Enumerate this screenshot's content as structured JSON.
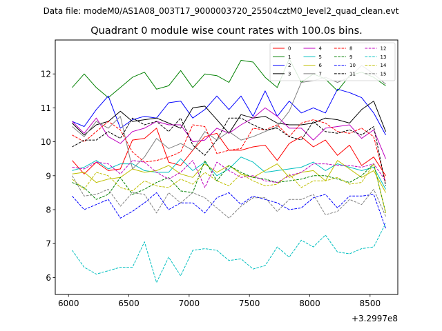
{
  "figure": {
    "suptitle": "Data file: modeM0/AS1A08_003T17_9000003720_25504cztM0_level2_quad_clean.evt",
    "title": "Quadrant 0 module wise count rates with 100.0s bins.",
    "offset_label": "+3.2997e8"
  },
  "chart_data": {
    "type": "line",
    "title": "Quadrant 0 module wise count rates with 100.0s bins.",
    "xlabel": "",
    "ylabel": "",
    "x_offset_text": "+3.2997e8",
    "xlim": [
      5890,
      8730
    ],
    "ylim": [
      5.5,
      13.0
    ],
    "xticks": [
      6000,
      6500,
      7000,
      7500,
      8000,
      8500
    ],
    "yticks": [
      6,
      7,
      8,
      9,
      10,
      11,
      12
    ],
    "grid": false,
    "legend": {
      "placement": "top-right",
      "columns": 4
    },
    "x": [
      6030,
      6130,
      6230,
      6330,
      6430,
      6530,
      6630,
      6730,
      6830,
      6930,
      7030,
      7130,
      7230,
      7330,
      7430,
      7530,
      7630,
      7730,
      7830,
      7930,
      8030,
      8130,
      8230,
      8330,
      8430,
      8530,
      8630
    ],
    "series": [
      {
        "name": "0",
        "color": "#ff0000",
        "dash": "solid",
        "values": [
          9.45,
          9.05,
          9.4,
          9.15,
          9.2,
          10.05,
          10.1,
          10.4,
          9.4,
          9.3,
          9.75,
          10.15,
          10.25,
          9.75,
          9.75,
          9.85,
          9.9,
          9.45,
          9.95,
          10.15,
          9.85,
          10.05,
          9.6,
          9.9,
          9.3,
          9.55,
          9.0
        ]
      },
      {
        "name": "1",
        "color": "#008000",
        "dash": "solid",
        "values": [
          11.6,
          12.0,
          11.6,
          11.3,
          11.6,
          11.9,
          12.05,
          11.55,
          11.65,
          12.1,
          11.6,
          12.0,
          11.95,
          11.75,
          12.4,
          12.35,
          11.9,
          11.6,
          12.45,
          11.75,
          12.0,
          11.85,
          11.5,
          11.95,
          12.05,
          11.9,
          11.65
        ]
      },
      {
        "name": "2",
        "color": "#0000ff",
        "dash": "solid",
        "values": [
          10.6,
          10.45,
          10.95,
          11.35,
          10.4,
          10.65,
          10.75,
          10.7,
          11.15,
          11.2,
          10.7,
          10.95,
          11.35,
          10.95,
          11.35,
          10.75,
          11.5,
          10.75,
          11.2,
          10.85,
          11.0,
          10.85,
          11.55,
          11.45,
          11.3,
          10.85,
          10.2
        ]
      },
      {
        "name": "3",
        "color": "#000000",
        "dash": "solid",
        "values": [
          10.55,
          10.2,
          10.5,
          10.6,
          10.9,
          10.6,
          10.65,
          10.7,
          10.55,
          10.4,
          11.0,
          11.05,
          10.65,
          10.25,
          10.8,
          10.7,
          10.75,
          10.55,
          10.5,
          10.5,
          10.55,
          10.7,
          10.65,
          10.55,
          10.95,
          11.2,
          10.3
        ]
      },
      {
        "name": "4",
        "color": "#bf00bf",
        "dash": "solid",
        "values": [
          10.6,
          10.25,
          10.7,
          10.15,
          9.95,
          10.3,
          10.4,
          10.6,
          10.5,
          10.5,
          10.0,
          10.05,
          10.4,
          10.25,
          10.5,
          10.7,
          11.0,
          10.75,
          10.4,
          10.4,
          10.05,
          10.4,
          10.45,
          10.5,
          10.1,
          10.35,
          9.5
        ]
      },
      {
        "name": "5",
        "color": "#00bfbf",
        "dash": "solid",
        "values": [
          9.15,
          9.25,
          9.45,
          9.2,
          9.35,
          9.35,
          9.15,
          9.1,
          9.1,
          9.5,
          9.15,
          9.4,
          9.0,
          9.2,
          9.55,
          9.4,
          9.1,
          9.15,
          9.2,
          9.25,
          9.4,
          9.15,
          9.35,
          9.25,
          9.15,
          9.25,
          8.6
        ]
      },
      {
        "name": "6",
        "color": "#bfbf00",
        "dash": "solid",
        "values": [
          9.05,
          9.1,
          8.8,
          8.9,
          8.95,
          9.2,
          9.1,
          9.15,
          9.3,
          9.05,
          8.95,
          9.35,
          9.1,
          9.3,
          9.05,
          8.95,
          9.15,
          9.35,
          8.95,
          9.1,
          9.15,
          8.85,
          9.45,
          9.2,
          8.95,
          9.15,
          8.5
        ]
      },
      {
        "name": "7",
        "color": "#808080",
        "dash": "solid",
        "values": [
          10.45,
          10.15,
          10.6,
          10.4,
          10.75,
          9.2,
          9.55,
          10.1,
          9.8,
          9.95,
          9.75,
          10.3,
          10.05,
          10.3,
          10.05,
          10.15,
          10.3,
          10.45,
          10.9,
          11.75,
          11.8,
          11.9,
          11.75,
          11.9,
          12.25,
          12.0,
          11.7
        ]
      },
      {
        "name": "8",
        "color": "#ff0000",
        "dash": "dashed",
        "values": [
          10.2,
          10.0,
          10.3,
          10.6,
          10.35,
          9.7,
          9.4,
          9.45,
          9.55,
          9.7,
          10.5,
          10.45,
          9.65,
          9.75,
          9.8,
          10.4,
          10.35,
          10.5,
          10.15,
          10.55,
          10.65,
          10.55,
          10.3,
          10.25,
          10.4,
          10.15,
          8.8
        ]
      },
      {
        "name": "9",
        "color": "#008000",
        "dash": "dashed",
        "values": [
          8.8,
          8.65,
          8.3,
          8.45,
          8.95,
          8.45,
          8.6,
          8.8,
          8.95,
          8.55,
          8.5,
          9.45,
          8.85,
          9.3,
          9.1,
          8.95,
          8.9,
          8.8,
          8.85,
          8.9,
          9.0,
          9.0,
          8.9,
          8.8,
          9.0,
          9.35,
          7.9
        ]
      },
      {
        "name": "10",
        "color": "#0000ff",
        "dash": "dashed",
        "values": [
          8.4,
          8.0,
          8.15,
          8.3,
          7.75,
          7.95,
          8.2,
          8.5,
          8.0,
          8.2,
          8.2,
          7.9,
          8.35,
          8.5,
          8.15,
          8.4,
          8.3,
          8.2,
          8.0,
          8.05,
          8.35,
          8.45,
          8.05,
          8.4,
          8.4,
          8.45,
          7.45
        ]
      },
      {
        "name": "11",
        "color": "#000000",
        "dash": "dashed",
        "values": [
          9.85,
          10.05,
          10.05,
          10.3,
          10.1,
          10.7,
          10.5,
          10.6,
          10.3,
          10.7,
          9.9,
          9.6,
          10.05,
          10.7,
          10.7,
          10.5,
          10.35,
          10.4,
          10.15,
          10.05,
          10.6,
          10.3,
          10.25,
          10.35,
          10.2,
          10.45,
          8.7
        ]
      },
      {
        "name": "12",
        "color": "#bf00bf",
        "dash": "dashed",
        "values": [
          9.25,
          9.2,
          9.4,
          9.35,
          9.05,
          9.45,
          9.4,
          9.1,
          8.9,
          9.1,
          9.45,
          8.65,
          9.4,
          9.15,
          8.95,
          9.0,
          8.85,
          8.8,
          9.0,
          9.1,
          9.35,
          9.35,
          9.3,
          9.3,
          9.25,
          9.35,
          8.85
        ]
      },
      {
        "name": "13",
        "color": "#00bfbf",
        "dash": "dashed",
        "values": [
          6.8,
          6.3,
          6.1,
          6.2,
          6.3,
          6.3,
          7.05,
          5.85,
          6.6,
          6.05,
          6.8,
          6.85,
          6.8,
          6.5,
          6.55,
          6.25,
          6.35,
          6.9,
          6.6,
          7.1,
          6.9,
          7.25,
          6.75,
          6.7,
          6.85,
          6.9,
          7.6
        ]
      },
      {
        "name": "14",
        "color": "#bfbf00",
        "dash": "dashed",
        "values": [
          8.9,
          8.6,
          9.1,
          9.0,
          8.65,
          8.55,
          8.85,
          8.7,
          8.65,
          8.9,
          8.75,
          9.1,
          8.85,
          8.7,
          9.05,
          8.85,
          8.7,
          8.75,
          9.05,
          8.65,
          8.85,
          8.85,
          8.95,
          8.75,
          8.8,
          9.35,
          7.9
        ]
      },
      {
        "name": "15",
        "color": "#808080",
        "dash": "dashed",
        "values": [
          9.0,
          8.4,
          8.45,
          8.6,
          8.1,
          8.5,
          8.45,
          7.9,
          8.5,
          8.2,
          8.5,
          8.35,
          8.05,
          7.75,
          8.1,
          8.35,
          8.35,
          7.95,
          8.3,
          8.3,
          8.45,
          7.85,
          7.95,
          8.3,
          8.15,
          8.6,
          7.8
        ]
      }
    ]
  }
}
